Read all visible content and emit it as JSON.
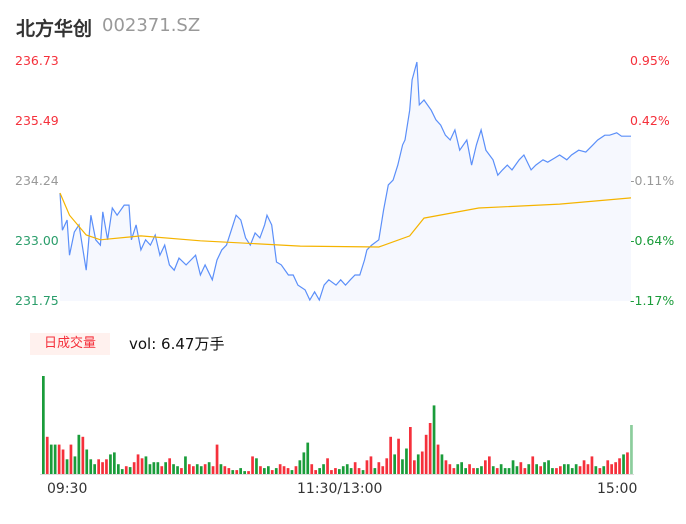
{
  "header": {
    "name": "北方华创",
    "code": "002371.SZ"
  },
  "colors": {
    "up": "#f5303b",
    "down": "#1a9c3a",
    "flat": "#999999",
    "price_line": "#5b8ff9",
    "avg_line": "#f5b400",
    "area_fill": "#f6f8fe"
  },
  "chart_data": [
    {
      "type": "line",
      "title": "",
      "y_left_ticks": [
        "236.73",
        "235.49",
        "234.24",
        "233.00",
        "231.75"
      ],
      "y_right_ticks": [
        "0.95%",
        "0.42%",
        "-0.11%",
        "-0.64%",
        "-1.17%"
      ],
      "ylim": [
        231.75,
        236.73
      ],
      "xlim_minutes": [
        0,
        240
      ],
      "x_ticks": [
        "09:30",
        "11:30/13:00",
        "15:00"
      ],
      "grid": false,
      "price_series": [
        [
          0,
          233.99
        ],
        [
          1,
          233.22
        ],
        [
          3,
          233.43
        ],
        [
          4,
          232.7
        ],
        [
          6,
          233.18
        ],
        [
          8,
          233.33
        ],
        [
          11,
          232.39
        ],
        [
          13,
          233.53
        ],
        [
          15,
          233.02
        ],
        [
          17,
          232.91
        ],
        [
          18,
          233.6
        ],
        [
          20,
          233.02
        ],
        [
          22,
          233.68
        ],
        [
          24,
          233.53
        ],
        [
          27,
          233.74
        ],
        [
          29,
          233.74
        ],
        [
          30,
          233.02
        ],
        [
          32,
          233.33
        ],
        [
          34,
          232.81
        ],
        [
          36,
          233.02
        ],
        [
          38,
          232.91
        ],
        [
          40,
          233.12
        ],
        [
          42,
          232.7
        ],
        [
          44,
          232.91
        ],
        [
          46,
          232.5
        ],
        [
          48,
          232.39
        ],
        [
          50,
          232.64
        ],
        [
          53,
          232.5
        ],
        [
          55,
          232.6
        ],
        [
          57,
          232.7
        ],
        [
          59,
          232.29
        ],
        [
          61,
          232.5
        ],
        [
          64,
          232.19
        ],
        [
          66,
          232.6
        ],
        [
          68,
          232.81
        ],
        [
          70,
          232.91
        ],
        [
          72,
          233.22
        ],
        [
          74,
          233.53
        ],
        [
          76,
          233.43
        ],
        [
          78,
          233.06
        ],
        [
          80,
          232.91
        ],
        [
          82,
          233.16
        ],
        [
          84,
          233.06
        ],
        [
          86,
          233.33
        ],
        [
          87,
          233.53
        ],
        [
          89,
          233.33
        ],
        [
          91,
          232.56
        ],
        [
          93,
          232.5
        ],
        [
          96,
          232.29
        ],
        [
          98,
          232.29
        ],
        [
          100,
          232.08
        ],
        [
          103,
          231.98
        ],
        [
          105,
          231.77
        ],
        [
          107,
          231.94
        ],
        [
          109,
          231.77
        ],
        [
          111,
          232.08
        ],
        [
          113,
          232.19
        ],
        [
          116,
          232.08
        ],
        [
          118,
          232.19
        ],
        [
          120,
          232.08
        ],
        [
          122,
          232.19
        ],
        [
          124,
          232.29
        ],
        [
          126,
          232.29
        ],
        [
          128,
          232.6
        ],
        [
          129,
          232.81
        ],
        [
          131,
          232.91
        ],
        [
          134,
          233.02
        ],
        [
          136,
          233.64
        ],
        [
          138,
          234.16
        ],
        [
          140,
          234.26
        ],
        [
          142,
          234.57
        ],
        [
          144,
          234.99
        ],
        [
          145,
          235.09
        ],
        [
          147,
          235.71
        ],
        [
          148,
          236.34
        ],
        [
          150,
          236.71
        ],
        [
          151,
          235.82
        ],
        [
          153,
          235.92
        ],
        [
          156,
          235.71
        ],
        [
          158,
          235.51
        ],
        [
          160,
          235.4
        ],
        [
          162,
          235.19
        ],
        [
          164,
          235.09
        ],
        [
          166,
          235.3
        ],
        [
          168,
          234.88
        ],
        [
          171,
          235.09
        ],
        [
          173,
          234.57
        ],
        [
          175,
          234.99
        ],
        [
          177,
          235.3
        ],
        [
          179,
          234.88
        ],
        [
          182,
          234.68
        ],
        [
          184,
          234.36
        ],
        [
          186,
          234.47
        ],
        [
          188,
          234.57
        ],
        [
          190,
          234.47
        ],
        [
          193,
          234.68
        ],
        [
          195,
          234.78
        ],
        [
          198,
          234.47
        ],
        [
          200,
          234.57
        ],
        [
          203,
          234.68
        ],
        [
          205,
          234.63
        ],
        [
          208,
          234.72
        ],
        [
          210,
          234.78
        ],
        [
          213,
          234.68
        ],
        [
          215,
          234.78
        ],
        [
          218,
          234.88
        ],
        [
          221,
          234.84
        ],
        [
          224,
          234.99
        ],
        [
          226,
          235.09
        ],
        [
          229,
          235.19
        ],
        [
          231,
          235.19
        ],
        [
          234,
          235.24
        ],
        [
          236,
          235.17
        ],
        [
          240,
          235.17
        ]
      ],
      "avg_series": [
        [
          0,
          233.99
        ],
        [
          4,
          233.53
        ],
        [
          11,
          233.12
        ],
        [
          17,
          233.02
        ],
        [
          34,
          233.1
        ],
        [
          59,
          233.0
        ],
        [
          101,
          232.89
        ],
        [
          134,
          232.87
        ],
        [
          147,
          233.1
        ],
        [
          153,
          233.47
        ],
        [
          176,
          233.68
        ],
        [
          210,
          233.76
        ],
        [
          240,
          233.89
        ]
      ]
    },
    {
      "type": "bar",
      "title": "日成交量",
      "label": "vol: 6.47万手",
      "unit": "relative",
      "values": [
        100,
        38,
        30,
        30,
        30,
        25,
        15,
        30,
        18,
        40,
        38,
        25,
        15,
        10,
        15,
        12,
        15,
        20,
        22,
        10,
        5,
        8,
        7,
        12,
        20,
        16,
        18,
        10,
        12,
        12,
        8,
        12,
        16,
        10,
        8,
        6,
        18,
        10,
        8,
        10,
        8,
        10,
        12,
        8,
        30,
        10,
        8,
        6,
        4,
        4,
        6,
        3,
        3,
        18,
        16,
        8,
        6,
        8,
        4,
        6,
        10,
        8,
        6,
        4,
        8,
        14,
        22,
        32,
        10,
        4,
        6,
        10,
        16,
        4,
        6,
        5,
        8,
        10,
        6,
        12,
        6,
        4,
        14,
        18,
        6,
        12,
        8,
        16,
        38,
        20,
        36,
        15,
        26,
        48,
        14,
        20,
        23,
        40,
        52,
        70,
        30,
        20,
        14,
        10,
        6,
        10,
        12,
        6,
        10,
        6,
        6,
        8,
        14,
        18,
        8,
        6,
        10,
        6,
        6,
        14,
        8,
        12,
        6,
        10,
        18,
        10,
        8,
        12,
        14,
        6,
        6,
        8,
        10,
        10,
        6,
        10,
        8,
        14,
        10,
        18,
        8,
        6,
        8,
        14,
        10,
        12,
        16,
        20,
        22,
        50
      ],
      "directions": "gr ggrr grgg rggg rrrggggrgrrrggggrgrggrgrrggrgrrgrrgrggrrgrggrgrrrgrgggrrggrrrggggrrgrrgrrrrgrggrrgrrrgrgrrrgggrrggrrgrgggggrrgrgrgggrrggggrrrrgrgrrrrgr"
    }
  ]
}
